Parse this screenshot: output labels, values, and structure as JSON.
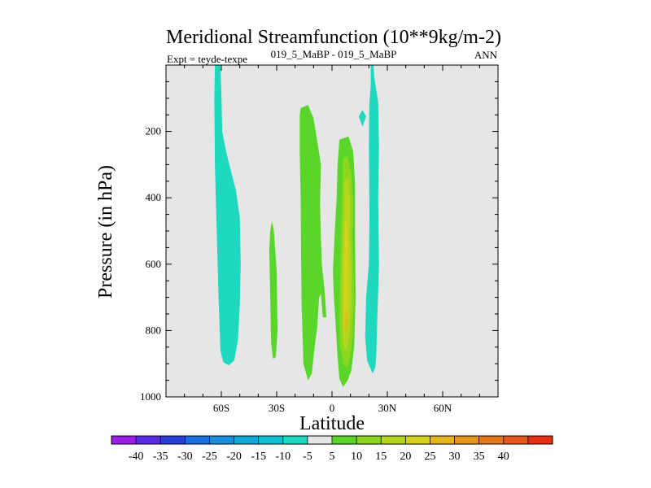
{
  "chart_data": {
    "type": "contour",
    "title": "Meridional Streamfunction (10**9kg/m-2)",
    "subtitle_left": "Expt = teyde-texpe",
    "subtitle_center": "019_5_MaBP - 019_5_MaBP",
    "subtitle_right": "ANN",
    "xlabel": "Latitude",
    "ylabel": "Pressure (in hPa)",
    "xlim": [
      -90,
      90
    ],
    "ylim": [
      1000,
      0
    ],
    "x_ticks": [
      -60,
      -30,
      0,
      30,
      60
    ],
    "x_tick_labels": [
      "60S",
      "30S",
      "0",
      "30N",
      "60N"
    ],
    "y_ticks": [
      200,
      400,
      600,
      800,
      1000
    ],
    "y_tick_labels": [
      "200",
      "400",
      "600",
      "800",
      "1000"
    ],
    "background_color": "#e6e6e6",
    "colorbar": {
      "levels": [
        -40,
        -35,
        -30,
        -25,
        -20,
        -15,
        -10,
        -5,
        5,
        10,
        15,
        20,
        25,
        30,
        35,
        40
      ],
      "labels": [
        "-40",
        "-35",
        "-30",
        "-25",
        "-20",
        "-15",
        "-10",
        "-5",
        "5",
        "10",
        "15",
        "20",
        "25",
        "30",
        "35",
        "40"
      ],
      "colors": [
        "#9b1ee6",
        "#5a2be6",
        "#2a3fd8",
        "#1a6fde",
        "#1a8fe0",
        "#12a7d8",
        "#0fc0d0",
        "#1ed9c0",
        "#e6e6e6",
        "#5ad62a",
        "#8cd61e",
        "#b4d61c",
        "#d6d21c",
        "#e6b41c",
        "#e6961c",
        "#e6781c",
        "#e6561c",
        "#e62e12"
      ]
    },
    "regions": [
      {
        "name": "negative-cell-60S",
        "level": -10,
        "color": "#1ed9c0",
        "points": [
          [
            -63.5,
            0
          ],
          [
            -60.5,
            0
          ],
          [
            -60,
            80
          ],
          [
            -59.5,
            200
          ],
          [
            -57,
            270
          ],
          [
            -52,
            380
          ],
          [
            -50,
            460
          ],
          [
            -49.5,
            600
          ],
          [
            -50,
            720
          ],
          [
            -51,
            830
          ],
          [
            -53,
            890
          ],
          [
            -56,
            905
          ],
          [
            -59,
            895
          ],
          [
            -60.5,
            860
          ],
          [
            -61.5,
            700
          ],
          [
            -62.5,
            500
          ],
          [
            -63.5,
            300
          ],
          [
            -63.8,
            100
          ]
        ]
      },
      {
        "name": "negative-cell-20N",
        "level": -10,
        "color": "#1ed9c0",
        "points": [
          [
            21,
            0
          ],
          [
            22.5,
            0
          ],
          [
            23,
            40
          ],
          [
            25,
            110
          ],
          [
            25.5,
            250
          ],
          [
            25,
            400
          ],
          [
            25.5,
            600
          ],
          [
            24.5,
            780
          ],
          [
            24,
            870
          ],
          [
            23.5,
            910
          ],
          [
            22,
            930
          ],
          [
            19,
            890
          ],
          [
            18,
            820
          ],
          [
            18.5,
            700
          ],
          [
            20,
            600
          ],
          [
            20.3,
            450
          ],
          [
            20,
            250
          ],
          [
            20.2,
            120
          ],
          [
            21,
            60
          ]
        ]
      },
      {
        "name": "negative-blob-17N",
        "level": -10,
        "color": "#1ed9c0",
        "points": [
          [
            16.5,
            135
          ],
          [
            18.5,
            155
          ],
          [
            16.5,
            185
          ],
          [
            14.5,
            155
          ]
        ]
      },
      {
        "name": "positive-cell-35S",
        "level": 5,
        "color": "#5ad62a",
        "points": [
          [
            -32.5,
            470
          ],
          [
            -31.5,
            500
          ],
          [
            -30,
            620
          ],
          [
            -29.5,
            800
          ],
          [
            -30.5,
            880
          ],
          [
            -32,
            885
          ],
          [
            -33,
            840
          ],
          [
            -33.5,
            700
          ],
          [
            -34,
            560
          ],
          [
            -33.5,
            500
          ]
        ]
      },
      {
        "name": "positive-cell-15S",
        "level": 5,
        "color": "#5ad62a",
        "points": [
          [
            -17,
            130
          ],
          [
            -13,
            120
          ],
          [
            -10,
            160
          ],
          [
            -8,
            230
          ],
          [
            -6,
            300
          ],
          [
            -6.5,
            420
          ],
          [
            -6,
            520
          ],
          [
            -5.5,
            600
          ],
          [
            -4,
            680
          ],
          [
            -3,
            760
          ],
          [
            -5,
            760
          ],
          [
            -6,
            690
          ],
          [
            -7,
            700
          ],
          [
            -8,
            790
          ],
          [
            -9,
            830
          ],
          [
            -11,
            930
          ],
          [
            -13,
            950
          ],
          [
            -15.5,
            900
          ],
          [
            -16.5,
            720
          ],
          [
            -16.8,
            540
          ],
          [
            -17,
            400
          ],
          [
            -17.5,
            260
          ],
          [
            -17.5,
            150
          ]
        ]
      },
      {
        "name": "positive-cell-5N",
        "level": 5,
        "color": "#5ad62a",
        "points": [
          [
            4,
            225
          ],
          [
            9,
            215
          ],
          [
            11.5,
            260
          ],
          [
            12.5,
            360
          ],
          [
            12.5,
            520
          ],
          [
            12.8,
            700
          ],
          [
            12,
            850
          ],
          [
            10.5,
            920
          ],
          [
            8.5,
            950
          ],
          [
            6,
            970
          ],
          [
            4,
            945
          ],
          [
            3,
            880
          ],
          [
            2,
            780
          ],
          [
            1,
            700
          ],
          [
            0.5,
            620
          ],
          [
            1.5,
            500
          ],
          [
            2.5,
            400
          ],
          [
            3,
            300
          ]
        ]
      },
      {
        "name": "positive-core-10",
        "level": 10,
        "color": "#8cd61e",
        "points": [
          [
            6,
            280
          ],
          [
            8.5,
            275
          ],
          [
            10.5,
            330
          ],
          [
            11.5,
            420
          ],
          [
            11,
            520
          ],
          [
            11.5,
            600
          ],
          [
            12,
            700
          ],
          [
            11.2,
            820
          ],
          [
            10,
            880
          ],
          [
            8.5,
            910
          ],
          [
            6.5,
            905
          ],
          [
            4.5,
            850
          ],
          [
            4,
            760
          ],
          [
            4.5,
            620
          ],
          [
            5,
            500
          ],
          [
            5.5,
            400
          ]
        ]
      },
      {
        "name": "positive-core-15",
        "level": 15,
        "color": "#b4d61c",
        "points": [
          [
            6.5,
            350
          ],
          [
            9,
            340
          ],
          [
            10,
            420
          ],
          [
            9.8,
            500
          ],
          [
            10.5,
            600
          ],
          [
            10.5,
            720
          ],
          [
            9.5,
            820
          ],
          [
            8,
            860
          ],
          [
            6.5,
            850
          ],
          [
            5.5,
            780
          ],
          [
            5.5,
            640
          ],
          [
            6,
            520
          ],
          [
            6.5,
            440
          ]
        ]
      },
      {
        "name": "positive-core-20",
        "level": 20,
        "color": "#d6d21c",
        "points": [
          [
            7,
            470
          ],
          [
            8.5,
            480
          ],
          [
            8.8,
            600
          ],
          [
            8.5,
            750
          ],
          [
            7.5,
            800
          ],
          [
            6.5,
            760
          ],
          [
            6.5,
            620
          ]
        ]
      },
      {
        "name": "positive-core-25",
        "level": 25,
        "color": "#e6b41c",
        "points": [
          [
            7.2,
            740
          ],
          [
            8.2,
            745
          ],
          [
            8,
            800
          ],
          [
            7.2,
            800
          ]
        ]
      }
    ]
  }
}
